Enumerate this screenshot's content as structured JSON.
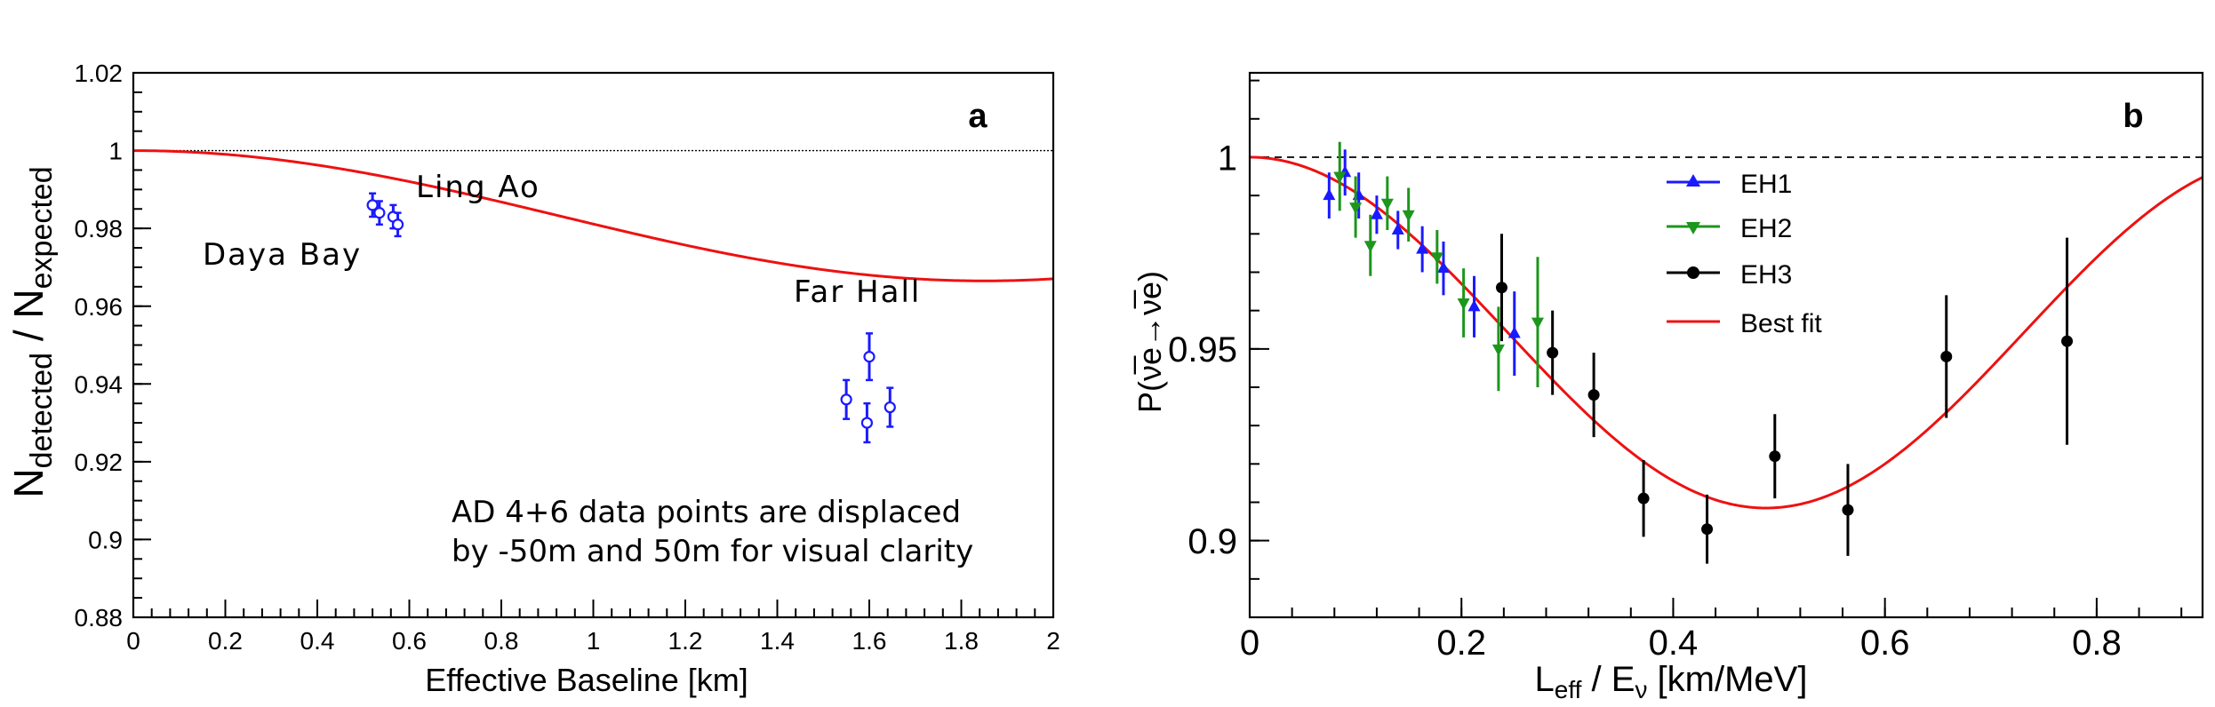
{
  "chart_data": [
    {
      "type": "scatter",
      "panel_label": "a",
      "xlabel": "Effective Baseline [km]",
      "ylabel_main": "N",
      "ylabel_sub1": "detected",
      "ylabel_mid": " / N",
      "ylabel_sub2": "expected",
      "xlim": [
        0,
        2
      ],
      "ylim": [
        0.88,
        1.02
      ],
      "xticks": [
        "0",
        "0.2",
        "0.4",
        "0.6",
        "0.8",
        "1",
        "1.2",
        "1.4",
        "1.6",
        "1.8",
        "2"
      ],
      "yticks": [
        "0.88",
        "0.9",
        "0.92",
        "0.94",
        "0.96",
        "0.98",
        "1",
        "1.02"
      ],
      "reference_line": 1.0,
      "site_labels": [
        {
          "text": "Daya Bay"
        },
        {
          "text": "Ling Ao"
        },
        {
          "text": "Far Hall"
        }
      ],
      "note_line1": "AD 4+6 data points are displaced",
      "note_line2": "by -50m and 50m for visual clarity",
      "points": [
        {
          "x": 0.52,
          "y": 0.986,
          "err": 0.003
        },
        {
          "x": 0.535,
          "y": 0.984,
          "err": 0.003
        },
        {
          "x": 0.565,
          "y": 0.983,
          "err": 0.003
        },
        {
          "x": 0.575,
          "y": 0.981,
          "err": 0.003
        },
        {
          "x": 1.55,
          "y": 0.936,
          "err": 0.005
        },
        {
          "x": 1.595,
          "y": 0.93,
          "err": 0.005
        },
        {
          "x": 1.6,
          "y": 0.947,
          "err": 0.006
        },
        {
          "x": 1.645,
          "y": 0.934,
          "err": 0.005
        }
      ],
      "fit_curve": {
        "amplitude": 0.0335,
        "period_km": 3.7
      }
    },
    {
      "type": "scatter",
      "panel_label": "b",
      "xlabel_main": "L",
      "xlabel_sub1": "eff",
      "xlabel_mid": " / E",
      "xlabel_sub2": "ν",
      "xlabel_tail": " [km/MeV]",
      "ylabel": "P(ν̅e→ν̅e)",
      "xlim": [
        0,
        0.9
      ],
      "ylim": [
        0.88,
        1.022
      ],
      "xticks": [
        "0",
        "0.2",
        "0.4",
        "0.6",
        "0.8"
      ],
      "yticks": [
        "0.9",
        "0.95",
        "1"
      ],
      "reference_line": 1.0,
      "legend": [
        "EH1",
        "EH2",
        "EH3",
        "Best fit"
      ],
      "colors": {
        "EH1": "#1a1aff",
        "EH2": "#1c961c",
        "EH3": "#000000",
        "fit": "#ee1111"
      },
      "series": [
        {
          "name": "EH1",
          "points": [
            {
              "x": 0.075,
              "y": 0.99,
              "err": 0.006
            },
            {
              "x": 0.09,
              "y": 0.996,
              "err": 0.006
            },
            {
              "x": 0.103,
              "y": 0.99,
              "err": 0.006
            },
            {
              "x": 0.12,
              "y": 0.985,
              "err": 0.005
            },
            {
              "x": 0.14,
              "y": 0.981,
              "err": 0.005
            },
            {
              "x": 0.163,
              "y": 0.976,
              "err": 0.006
            },
            {
              "x": 0.183,
              "y": 0.971,
              "err": 0.007
            },
            {
              "x": 0.212,
              "y": 0.961,
              "err": 0.008
            },
            {
              "x": 0.25,
              "y": 0.954,
              "err": 0.011
            }
          ]
        },
        {
          "name": "EH2",
          "points": [
            {
              "x": 0.085,
              "y": 0.995,
              "err": 0.009
            },
            {
              "x": 0.1,
              "y": 0.987,
              "err": 0.008
            },
            {
              "x": 0.114,
              "y": 0.977,
              "err": 0.008
            },
            {
              "x": 0.13,
              "y": 0.988,
              "err": 0.007
            },
            {
              "x": 0.15,
              "y": 0.985,
              "err": 0.007
            },
            {
              "x": 0.177,
              "y": 0.974,
              "err": 0.007
            },
            {
              "x": 0.202,
              "y": 0.962,
              "err": 0.009
            },
            {
              "x": 0.235,
              "y": 0.95,
              "err": 0.011
            },
            {
              "x": 0.272,
              "y": 0.957,
              "err": 0.017
            }
          ]
        },
        {
          "name": "EH3",
          "points": [
            {
              "x": 0.238,
              "y": 0.966,
              "err": 0.014
            },
            {
              "x": 0.286,
              "y": 0.949,
              "err": 0.011
            },
            {
              "x": 0.325,
              "y": 0.938,
              "err": 0.011
            },
            {
              "x": 0.372,
              "y": 0.911,
              "err": 0.01
            },
            {
              "x": 0.432,
              "y": 0.903,
              "err": 0.009
            },
            {
              "x": 0.496,
              "y": 0.922,
              "err": 0.011
            },
            {
              "x": 0.565,
              "y": 0.908,
              "err": 0.012
            },
            {
              "x": 0.658,
              "y": 0.948,
              "err": 0.016
            },
            {
              "x": 0.772,
              "y": 0.952,
              "err": 0.027
            }
          ]
        }
      ],
      "fit_curve": {
        "min_value": 0.9085,
        "period_LE": 0.975
      }
    }
  ]
}
